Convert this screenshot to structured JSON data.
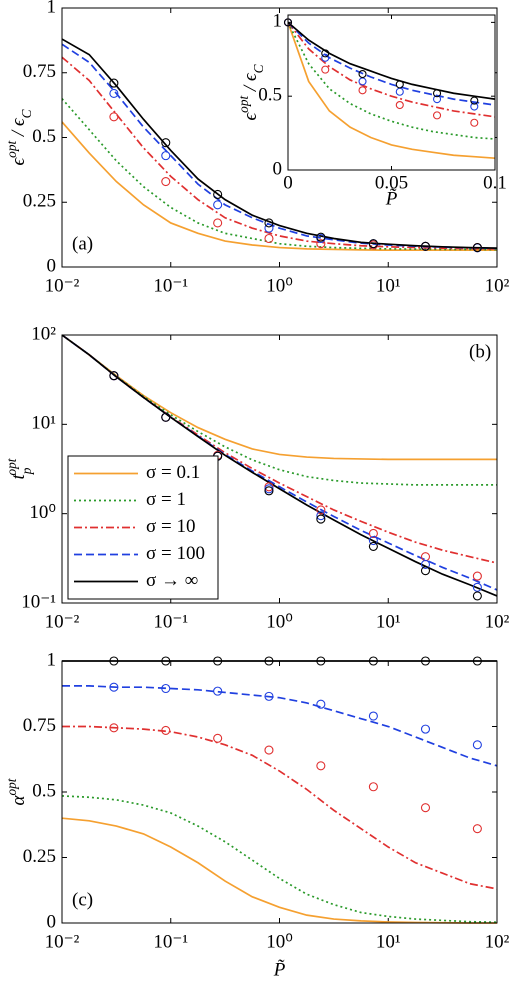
{
  "chart_data": [
    {
      "type": "line",
      "panel_label": "(a)",
      "xscale": "log",
      "yscale": "linear",
      "ylabel": [
        {
          "text": "ϵ"
        },
        {
          "sup": "opt"
        },
        {
          "text": " / ϵ"
        },
        {
          "sub": "C"
        }
      ],
      "xlim": [
        0.01,
        100
      ],
      "ylim": [
        0,
        1
      ],
      "xticks": [
        {
          "value": 0.01,
          "label": "10⁻²"
        },
        {
          "value": 0.1,
          "label": "10⁻¹"
        },
        {
          "value": 1,
          "label": "10⁰"
        },
        {
          "value": 10,
          "label": "10¹"
        },
        {
          "value": 100,
          "label": "10²"
        }
      ],
      "yticks": [
        0,
        0.25,
        0.5,
        0.75,
        1
      ],
      "x": [
        0.01,
        0.0178,
        0.0316,
        0.0562,
        0.1,
        0.178,
        0.316,
        0.562,
        1,
        1.78,
        3.16,
        5.62,
        10,
        17.8,
        31.6,
        56.2,
        100
      ],
      "series": [
        {
          "color": "#f5a030",
          "dash": "solid",
          "values": [
            0.56,
            0.44,
            0.33,
            0.24,
            0.17,
            0.13,
            0.1,
            0.085,
            0.075,
            0.07,
            0.068,
            0.066,
            0.065,
            0.065,
            0.065,
            0.065,
            0.065
          ]
        },
        {
          "color": "#2a9a2a",
          "dash": "dotted",
          "values": [
            0.65,
            0.53,
            0.41,
            0.31,
            0.23,
            0.17,
            0.13,
            0.11,
            0.09,
            0.08,
            0.075,
            0.072,
            0.07,
            0.069,
            0.068,
            0.068,
            0.067
          ]
        },
        {
          "color": "#e03030",
          "dash": "dashdot",
          "values": [
            0.81,
            0.72,
            0.59,
            0.46,
            0.35,
            0.26,
            0.19,
            0.15,
            0.12,
            0.1,
            0.09,
            0.082,
            0.078,
            0.075,
            0.073,
            0.071,
            0.07
          ]
        },
        {
          "color": "#2040e0",
          "dash": "dashed",
          "values": [
            0.86,
            0.79,
            0.67,
            0.54,
            0.43,
            0.32,
            0.24,
            0.19,
            0.15,
            0.12,
            0.105,
            0.092,
            0.085,
            0.08,
            0.077,
            0.074,
            0.072
          ]
        },
        {
          "color": "#000000",
          "dash": "solid",
          "values": [
            0.88,
            0.82,
            0.7,
            0.57,
            0.45,
            0.34,
            0.26,
            0.2,
            0.16,
            0.13,
            0.11,
            0.095,
            0.088,
            0.082,
            0.078,
            0.075,
            0.073
          ]
        }
      ],
      "points": [
        {
          "color": "#e03030",
          "x": [
            0.03,
            0.09,
            0.27,
            0.8,
            2.4,
            7.3,
            22,
            66
          ],
          "values": [
            0.58,
            0.33,
            0.17,
            0.11,
            0.09,
            0.085,
            0.08,
            0.075
          ]
        },
        {
          "color": "#2040e0",
          "x": [
            0.03,
            0.09,
            0.27,
            0.8,
            2.4,
            7.3,
            22,
            66
          ],
          "values": [
            0.67,
            0.43,
            0.24,
            0.15,
            0.11,
            0.09,
            0.08,
            0.074
          ]
        },
        {
          "color": "#000000",
          "x": [
            0.03,
            0.09,
            0.27,
            0.8,
            2.4,
            7.3,
            22,
            66
          ],
          "values": [
            0.71,
            0.48,
            0.28,
            0.17,
            0.115,
            0.09,
            0.08,
            0.075
          ]
        }
      ]
    },
    {
      "type": "line",
      "panel_label": "(b)",
      "xscale": "log",
      "yscale": "log",
      "legend": "lower left",
      "ylabel": [
        {
          "text": "t"
        },
        {
          "sub": "p"
        },
        {
          "sup": "opt"
        }
      ],
      "xlim": [
        0.01,
        100
      ],
      "ylim": [
        0.1,
        100
      ],
      "xticks": [
        {
          "value": 0.01,
          "label": "10⁻²"
        },
        {
          "value": 0.1,
          "label": "10⁻¹"
        },
        {
          "value": 1,
          "label": "10⁰"
        },
        {
          "value": 10,
          "label": "10¹"
        },
        {
          "value": 100,
          "label": "10²"
        }
      ],
      "yticks": [
        {
          "value": 0.1,
          "label": "10⁻¹"
        },
        {
          "value": 1,
          "label": "10⁰"
        },
        {
          "value": 10,
          "label": "10¹"
        },
        {
          "value": 100,
          "label": "10²"
        }
      ],
      "x": [
        0.01,
        0.0178,
        0.0316,
        0.0562,
        0.1,
        0.178,
        0.316,
        0.562,
        1,
        1.78,
        3.16,
        5.62,
        10,
        17.8,
        31.6,
        56.2,
        100
      ],
      "series": [
        {
          "name": "σ = 0.1",
          "color": "#f5a030",
          "dash": "solid",
          "values": [
            100,
            60,
            35,
            21,
            13.5,
            9.2,
            6.8,
            5.3,
            4.6,
            4.3,
            4.15,
            4.1,
            4.05,
            4.05,
            4.05,
            4.05,
            4.05
          ]
        },
        {
          "name": "σ = 1",
          "color": "#2a9a2a",
          "dash": "dotted",
          "values": [
            100,
            60,
            34.5,
            20.5,
            12.8,
            8.3,
            5.6,
            4.0,
            3.1,
            2.6,
            2.35,
            2.2,
            2.15,
            2.1,
            2.1,
            2.1,
            2.1
          ]
        },
        {
          "name": "σ = 10",
          "color": "#e03030",
          "dash": "dashdot",
          "values": [
            100,
            60,
            34,
            20,
            12.2,
            7.6,
            4.8,
            3.2,
            2.2,
            1.55,
            1.1,
            0.82,
            0.62,
            0.48,
            0.39,
            0.33,
            0.28
          ]
        },
        {
          "name": "σ = 100",
          "color": "#2040e0",
          "dash": "dashed",
          "values": [
            100,
            60,
            34,
            20,
            12,
            7.4,
            4.6,
            3.0,
            2.0,
            1.35,
            0.93,
            0.65,
            0.47,
            0.34,
            0.25,
            0.19,
            0.14
          ]
        },
        {
          "name": "σ → ∞",
          "color": "#000000",
          "dash": "solid",
          "values": [
            100,
            60,
            34,
            20,
            12,
            7.3,
            4.5,
            2.9,
            1.9,
            1.25,
            0.85,
            0.58,
            0.41,
            0.29,
            0.21,
            0.16,
            0.12
          ]
        }
      ],
      "points": [
        {
          "color": "#e03030",
          "x": [
            0.03,
            0.09,
            0.27,
            0.8,
            2.4,
            7.3,
            22,
            66
          ],
          "values": [
            35,
            12,
            4.5,
            2.0,
            1.1,
            0.6,
            0.33,
            0.2
          ]
        },
        {
          "color": "#2040e0",
          "x": [
            0.03,
            0.09,
            0.27,
            0.8,
            2.4,
            7.3,
            22,
            66
          ],
          "values": [
            35,
            12,
            4.4,
            1.9,
            0.95,
            0.5,
            0.27,
            0.15
          ]
        },
        {
          "color": "#000000",
          "x": [
            0.03,
            0.09,
            0.27,
            0.8,
            2.4,
            7.3,
            22,
            66
          ],
          "values": [
            35,
            12,
            4.4,
            1.8,
            0.87,
            0.43,
            0.23,
            0.12
          ]
        }
      ]
    },
    {
      "type": "line",
      "panel_label": "(c)",
      "xscale": "log",
      "yscale": "linear",
      "ylabel": [
        {
          "text": "α"
        },
        {
          "sup": "opt"
        }
      ],
      "xlabel": "P̃",
      "xlim": [
        0.01,
        100
      ],
      "ylim": [
        0,
        1
      ],
      "xticks": [
        {
          "value": 0.01,
          "label": "10⁻²"
        },
        {
          "value": 0.1,
          "label": "10⁻¹"
        },
        {
          "value": 1,
          "label": "10⁰"
        },
        {
          "value": 10,
          "label": "10¹"
        },
        {
          "value": 100,
          "label": "10²"
        }
      ],
      "yticks": [
        0,
        0.25,
        0.5,
        0.75,
        1
      ],
      "x": [
        0.01,
        0.0178,
        0.0316,
        0.0562,
        0.1,
        0.178,
        0.316,
        0.562,
        1,
        1.78,
        3.16,
        5.62,
        10,
        17.8,
        31.6,
        56.2,
        100
      ],
      "series": [
        {
          "color": "#f5a030",
          "dash": "solid",
          "values": [
            0.4,
            0.39,
            0.37,
            0.34,
            0.29,
            0.23,
            0.16,
            0.1,
            0.06,
            0.03,
            0.015,
            0.008,
            0.004,
            0.002,
            0.001,
            0,
            0
          ]
        },
        {
          "color": "#2a9a2a",
          "dash": "dotted",
          "values": [
            0.485,
            0.48,
            0.47,
            0.45,
            0.42,
            0.37,
            0.31,
            0.24,
            0.17,
            0.11,
            0.07,
            0.04,
            0.025,
            0.015,
            0.01,
            0.005,
            0.003
          ]
        },
        {
          "color": "#e03030",
          "dash": "dashdot",
          "values": [
            0.75,
            0.75,
            0.745,
            0.74,
            0.73,
            0.71,
            0.68,
            0.64,
            0.58,
            0.51,
            0.43,
            0.36,
            0.29,
            0.23,
            0.19,
            0.15,
            0.13
          ]
        },
        {
          "color": "#2040e0",
          "dash": "dashed",
          "values": [
            0.905,
            0.905,
            0.9,
            0.9,
            0.895,
            0.89,
            0.88,
            0.87,
            0.86,
            0.84,
            0.81,
            0.78,
            0.75,
            0.71,
            0.67,
            0.63,
            0.6
          ]
        },
        {
          "color": "#000000",
          "dash": "solid",
          "values": [
            1,
            1,
            1,
            1,
            1,
            1,
            1,
            1,
            1,
            1,
            1,
            1,
            1,
            1,
            1,
            1,
            1
          ]
        }
      ],
      "points": [
        {
          "color": "#e03030",
          "x": [
            0.03,
            0.09,
            0.27,
            0.8,
            2.4,
            7.3,
            22,
            66
          ],
          "values": [
            0.745,
            0.735,
            0.705,
            0.66,
            0.6,
            0.52,
            0.44,
            0.36
          ]
        },
        {
          "color": "#2040e0",
          "x": [
            0.03,
            0.09,
            0.27,
            0.8,
            2.4,
            7.3,
            22,
            66
          ],
          "values": [
            0.9,
            0.895,
            0.885,
            0.865,
            0.835,
            0.79,
            0.74,
            0.68
          ]
        },
        {
          "color": "#000000",
          "x": [
            0.03,
            0.09,
            0.27,
            0.8,
            2.4,
            7.3,
            22,
            66
          ],
          "values": [
            1,
            1,
            1,
            1,
            1,
            1,
            1,
            1
          ]
        }
      ]
    },
    {
      "type": "line",
      "xscale": "linear",
      "yscale": "linear",
      "ylabel": [
        {
          "text": "ϵ"
        },
        {
          "sup": "opt"
        },
        {
          "text": " / ϵ"
        },
        {
          "sub": "C"
        }
      ],
      "xlabel": "P̃",
      "xlim": [
        0,
        0.1
      ],
      "ylim": [
        0,
        1.05
      ],
      "xticks": [
        0,
        0.05,
        0.1
      ],
      "yticks": [
        0,
        0.5,
        1
      ],
      "x": [
        0,
        0.01,
        0.02,
        0.03,
        0.04,
        0.05,
        0.06,
        0.07,
        0.08,
        0.09,
        0.1
      ],
      "series": [
        {
          "color": "#f5a030",
          "dash": "solid",
          "values": [
            1,
            0.6,
            0.4,
            0.29,
            0.22,
            0.17,
            0.14,
            0.12,
            0.1,
            0.09,
            0.08
          ]
        },
        {
          "color": "#2a9a2a",
          "dash": "dotted",
          "values": [
            1,
            0.72,
            0.55,
            0.45,
            0.38,
            0.33,
            0.29,
            0.26,
            0.24,
            0.22,
            0.21
          ]
        },
        {
          "color": "#e03030",
          "dash": "dashdot",
          "values": [
            1,
            0.82,
            0.7,
            0.61,
            0.55,
            0.5,
            0.46,
            0.43,
            0.4,
            0.38,
            0.36
          ]
        },
        {
          "color": "#2040e0",
          "dash": "dashed",
          "values": [
            1,
            0.86,
            0.76,
            0.69,
            0.63,
            0.58,
            0.54,
            0.51,
            0.48,
            0.46,
            0.44
          ]
        },
        {
          "color": "#000000",
          "dash": "solid",
          "values": [
            1,
            0.88,
            0.79,
            0.72,
            0.67,
            0.62,
            0.58,
            0.55,
            0.52,
            0.5,
            0.48
          ]
        }
      ],
      "points": [
        {
          "color": "#e03030",
          "x": [
            0,
            0.018,
            0.036,
            0.054,
            0.072,
            0.09
          ],
          "values": [
            1,
            0.68,
            0.54,
            0.44,
            0.37,
            0.32
          ]
        },
        {
          "color": "#2040e0",
          "x": [
            0,
            0.018,
            0.036,
            0.054,
            0.072,
            0.09
          ],
          "values": [
            1,
            0.76,
            0.6,
            0.53,
            0.48,
            0.43
          ]
        },
        {
          "color": "#000000",
          "x": [
            0,
            0.018,
            0.036,
            0.054,
            0.072,
            0.09
          ],
          "values": [
            1,
            0.79,
            0.65,
            0.58,
            0.52,
            0.47
          ]
        }
      ]
    }
  ]
}
